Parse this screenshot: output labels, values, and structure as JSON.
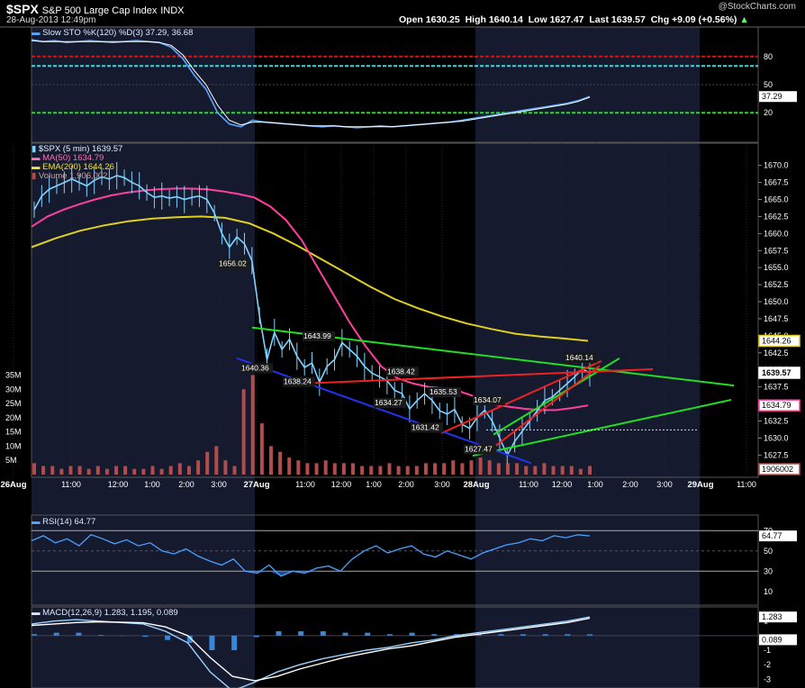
{
  "header": {
    "symbol": "$SPX",
    "name": "S&P 500 Large Cap Index",
    "exchange": "INDX",
    "datetime": "28-Aug-2013 12:49pm",
    "open_label": "Open",
    "open": "1630.25",
    "high_label": "High",
    "high": "1640.14",
    "low_label": "Low",
    "low": "1627.47",
    "last_label": "Last",
    "last": "1639.57",
    "chg_label": "Chg",
    "chg": "+9.09 (+0.56%)",
    "brand": "@StockCharts.com"
  },
  "legends": {
    "sto": "Slow STO %K(120) %D(3) 37.29, 36.68",
    "price": "$SPX (5 min) 1639.57",
    "ma50": "MA(50) 1634.79",
    "ema200": "EMA(200) 1644.26",
    "volume": "Volume 1,906,002",
    "rsi": "RSI(14) 64.77",
    "macd": "MACD(12,26,9) 1.283, 1.195, 0.089"
  },
  "colors": {
    "background": "#000000",
    "shade": "#151a2e",
    "price": "#7fd3ff",
    "ma50": "#ff3fa0",
    "ema200": "#e0d020",
    "volume": "#b04c4c",
    "trend_green": "#22dd22",
    "trend_red": "#ee2222",
    "trend_blue": "#2233ee",
    "sto_red_line": "#dd1111",
    "sto_cyan_line": "#33dddd",
    "sto_green_line": "#22dd22"
  },
  "chart_data": [
    {
      "type": "line",
      "title": "Slow STO %K(120) %D(3)",
      "series": [
        {
          "name": "%K",
          "values": [
            98,
            96,
            97,
            95,
            96,
            97,
            96,
            95,
            96,
            97,
            96,
            95,
            90,
            78,
            60,
            45,
            20,
            8,
            5,
            12,
            10,
            9,
            8,
            7,
            6,
            5,
            6,
            5,
            4,
            5,
            6,
            5,
            6,
            7,
            8,
            9,
            10,
            12,
            14,
            16,
            18,
            20,
            22,
            24,
            26,
            28,
            30,
            33,
            37.29
          ]
        },
        {
          "name": "%D",
          "values": [
            97,
            96,
            96,
            96,
            96,
            96,
            96,
            96,
            96,
            96,
            96,
            95,
            92,
            82,
            65,
            50,
            28,
            12,
            7,
            10,
            10,
            9,
            8,
            7,
            6,
            6,
            6,
            5,
            5,
            5,
            5,
            5,
            6,
            7,
            8,
            9,
            10,
            11,
            13,
            15,
            17,
            19,
            21,
            23,
            25,
            27,
            29,
            32,
            36.68
          ]
        }
      ],
      "reference_lines": [
        80,
        70,
        20
      ],
      "current": {
        "k": "37.29"
      },
      "y_ticks": [
        "80",
        "50",
        "20"
      ],
      "ylim": [
        0,
        100
      ]
    },
    {
      "type": "line",
      "title": "$SPX (5 min)",
      "x_ticks": [
        "26Aug",
        "11:00",
        "12:00",
        "1:00",
        "2:00",
        "3:00",
        "27Aug",
        "11:00",
        "12:00",
        "1:00",
        "2:00",
        "3:00",
        "28Aug",
        "11:00",
        "12:00",
        "1:00",
        "2:00",
        "3:00",
        "29Aug",
        "11:00"
      ],
      "y_ticks": [
        "1670.0",
        "1667.5",
        "1665.0",
        "1662.5",
        "1660.0",
        "1657.5",
        "1655.0",
        "1652.5",
        "1650.0",
        "1647.5",
        "1645.0",
        "1642.5",
        "1640.0",
        "1637.5",
        "1635.0",
        "1632.5",
        "1630.0",
        "1627.5"
      ],
      "vol_ticks": [
        "35M",
        "30M",
        "25M",
        "20M",
        "15M",
        "10M",
        "5M"
      ],
      "ylim": [
        1625.3,
        1672.2
      ],
      "price": [
        1663.5,
        1665.5,
        1666.5,
        1667.0,
        1667.5,
        1668.0,
        1667.5,
        1667.0,
        1667.8,
        1668.3,
        1668.0,
        1668.5,
        1668.2,
        1667.5,
        1667.0,
        1666.0,
        1665.3,
        1665.5,
        1665.2,
        1665.4,
        1665.0,
        1665.3,
        1665.5,
        1665.0,
        1663.0,
        1660.0,
        1658.0,
        1659.5,
        1658.5,
        1656.02,
        1648.0,
        1641.5,
        1645.5,
        1643.0,
        1644.5,
        1642.0,
        1640.36,
        1641.0,
        1638.2,
        1640.5,
        1641.5,
        1643.99,
        1643.0,
        1642.0,
        1640.5,
        1639.5,
        1639.0,
        1638.42,
        1637.0,
        1636.5,
        1634.27,
        1635.5,
        1636.5,
        1635.53,
        1634.0,
        1633.5,
        1634.2,
        1632.0,
        1631.42,
        1633.0,
        1634.07,
        1632.5,
        1630.0,
        1627.47,
        1629.5,
        1631.0,
        1632.5,
        1634.0,
        1635.5,
        1636.0,
        1637.0,
        1638.0,
        1639.0,
        1640.14,
        1639.57
      ],
      "ma50": [
        1661.0,
        1662.5,
        1663.5,
        1664.3,
        1665.0,
        1665.6,
        1666.0,
        1666.3,
        1666.5,
        1666.6,
        1666.6,
        1666.5,
        1666.2,
        1665.8,
        1665.3,
        1664.0,
        1662.0,
        1659.0,
        1655.0,
        1651.0,
        1647.0,
        1643.5,
        1640.5,
        1638.8,
        1638.0,
        1637.5,
        1637.3,
        1636.8,
        1636.0,
        1635.0,
        1634.6,
        1634.3,
        1634.1,
        1634.1,
        1634.4,
        1634.79
      ],
      "ema200": [
        1658.0,
        1659.3,
        1660.4,
        1661.2,
        1661.8,
        1662.2,
        1662.4,
        1662.5,
        1662.3,
        1661.5,
        1660.0,
        1658.2,
        1656.2,
        1654.2,
        1652.2,
        1650.4,
        1649.0,
        1647.8,
        1646.8,
        1646.0,
        1645.3,
        1644.9,
        1644.6,
        1644.26
      ],
      "volume": [
        4,
        3,
        3,
        2,
        3,
        3,
        2,
        3,
        2,
        3,
        3,
        2,
        2,
        3,
        2,
        3,
        4,
        3,
        5,
        8,
        10,
        5,
        3,
        30,
        35,
        18,
        10,
        8,
        6,
        5,
        4,
        4,
        5,
        4,
        4,
        4,
        3,
        3,
        3,
        4,
        3,
        3,
        3,
        4,
        4,
        4,
        5,
        4,
        5,
        6,
        5,
        4,
        4,
        4,
        3,
        3,
        4,
        3,
        3,
        3,
        2,
        3
      ],
      "annotations": [
        "1656.02",
        "1643.99",
        "1640.36",
        "1638.24",
        "1638.42",
        "1635.53",
        "1634.27",
        "1634.07",
        "1631.42",
        "1627.47",
        "1640.14"
      ],
      "current_labels": [
        "1644.26",
        "1639.57",
        "1634.79",
        "1906002"
      ]
    },
    {
      "type": "line",
      "title": "RSI(14)",
      "values": [
        60,
        65,
        58,
        62,
        55,
        66,
        62,
        57,
        61,
        55,
        58,
        50,
        47,
        52,
        45,
        40,
        36,
        42,
        30,
        28,
        36,
        25,
        30,
        28,
        33,
        35,
        30,
        42,
        50,
        55,
        48,
        52,
        55,
        47,
        44,
        50,
        46,
        42,
        48,
        52,
        56,
        58,
        62,
        60,
        65,
        63,
        66,
        64.77
      ],
      "reference_lines": [
        70,
        30
      ],
      "y_ticks": [
        "70",
        "50",
        "30",
        "10"
      ],
      "current": "64.77",
      "ylim": [
        0,
        80
      ]
    },
    {
      "type": "line",
      "title": "MACD(12,26,9)",
      "series": [
        {
          "name": "MACD",
          "values": [
            0.8,
            1.0,
            1.1,
            1.0,
            0.9,
            0.8,
            0.3,
            -0.5,
            -2.5,
            -3.8,
            -3.2,
            -2.5,
            -2.0,
            -1.6,
            -1.3,
            -1.0,
            -0.8,
            -0.5,
            -0.3,
            0.0,
            0.2,
            0.4,
            0.6,
            0.8,
            1.0,
            1.283
          ]
        },
        {
          "name": "Signal",
          "values": [
            0.7,
            0.8,
            0.9,
            0.95,
            0.92,
            0.88,
            0.6,
            0.0,
            -1.5,
            -2.8,
            -3.1,
            -2.8,
            -2.3,
            -1.9,
            -1.5,
            -1.2,
            -0.9,
            -0.7,
            -0.4,
            -0.1,
            0.1,
            0.3,
            0.5,
            0.7,
            0.9,
            1.195
          ]
        }
      ],
      "histogram": [
        0.1,
        0.2,
        0.2,
        0.05,
        -0.02,
        -0.08,
        -0.3,
        -0.5,
        -1.0,
        -1.0,
        -0.1,
        0.3,
        0.3,
        0.3,
        0.2,
        0.2,
        0.1,
        0.2,
        0.1,
        0.1,
        0.1,
        0.1,
        0.1,
        0.1,
        0.1,
        0.089
      ],
      "y_ticks": [
        "1",
        "-1",
        "-2",
        "-3"
      ],
      "current": [
        "1.283",
        "0.089"
      ],
      "ylim": [
        -3.6,
        1.6
      ]
    }
  ]
}
